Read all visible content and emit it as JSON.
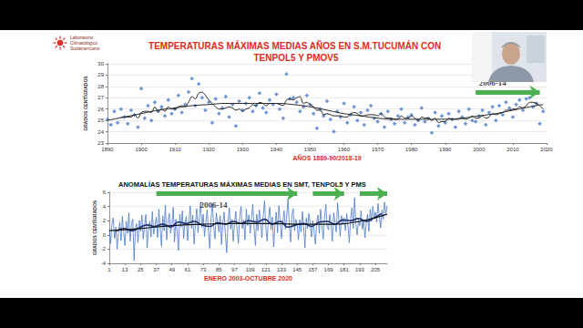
{
  "header": {
    "logo_text": "Laboratorio Climatológico Sudamericano"
  },
  "chart_data": [
    {
      "type": "scatter",
      "title": "TEMPERATURAS MÁXIMAS MEDIAS AÑOS EN S.M.TUCUMÁN CON TENPOL5 Y PMOV5",
      "x_label": "AÑOS 1889-90/2018-19",
      "y_label": "GRADOS CENTÍGRADOS",
      "x": [
        1890,
        1891,
        1892,
        1893,
        1894,
        1895,
        1896,
        1897,
        1898,
        1899,
        1900,
        1901,
        1902,
        1903,
        1904,
        1905,
        1906,
        1907,
        1908,
        1909,
        1910,
        1911,
        1912,
        1913,
        1914,
        1915,
        1916,
        1917,
        1918,
        1919,
        1920,
        1921,
        1922,
        1923,
        1924,
        1925,
        1926,
        1927,
        1928,
        1929,
        1930,
        1931,
        1932,
        1933,
        1934,
        1935,
        1936,
        1937,
        1938,
        1939,
        1940,
        1941,
        1942,
        1943,
        1944,
        1945,
        1946,
        1947,
        1948,
        1949,
        1950,
        1951,
        1952,
        1953,
        1954,
        1955,
        1956,
        1957,
        1958,
        1959,
        1960,
        1961,
        1962,
        1963,
        1964,
        1965,
        1966,
        1967,
        1968,
        1969,
        1970,
        1971,
        1972,
        1973,
        1974,
        1975,
        1976,
        1977,
        1978,
        1979,
        1980,
        1981,
        1982,
        1983,
        1984,
        1985,
        1986,
        1987,
        1988,
        1989,
        1990,
        1991,
        1992,
        1993,
        1994,
        1995,
        1996,
        1997,
        1998,
        1999,
        2000,
        2001,
        2002,
        2003,
        2004,
        2005,
        2006,
        2007,
        2008,
        2009,
        2010,
        2011,
        2012,
        2013,
        2014,
        2015,
        2016,
        2017,
        2018,
        2019
      ],
      "series": [
        {
          "type": "scatter",
          "color": "#4a7bc8",
          "marker": "diamond",
          "values": [
            25.1,
            24.6,
            25.8,
            24.8,
            26.0,
            25.3,
            24.7,
            25.9,
            25.5,
            24.4,
            27.8,
            25.2,
            26.3,
            25.0,
            26.6,
            25.8,
            26.2,
            25.4,
            26.8,
            25.6,
            26.0,
            27.2,
            25.7,
            26.4,
            27.5,
            28.7,
            26.3,
            28.2,
            27.0,
            25.9,
            26.6,
            24.8,
            26.9,
            25.6,
            26.1,
            27.1,
            25.3,
            26.4,
            24.5,
            26.7,
            25.9,
            26.5,
            27.0,
            25.8,
            26.3,
            27.4,
            26.1,
            25.7,
            26.8,
            26.4,
            27.3,
            26.0,
            25.2,
            29.1,
            26.9,
            27.0,
            26.6,
            25.8,
            26.2,
            27.2,
            26.4,
            25.6,
            24.3,
            26.0,
            25.4,
            26.7,
            25.1,
            24.0,
            25.8,
            25.3,
            26.5,
            24.8,
            25.5,
            26.2,
            25.0,
            25.7,
            24.6,
            25.9,
            26.3,
            25.2,
            24.9,
            25.6,
            24.4,
            25.8,
            25.1,
            24.7,
            25.4,
            26.0,
            24.8,
            25.3,
            25.5,
            24.6,
            25.0,
            26.1,
            24.9,
            25.2,
            23.9,
            25.7,
            24.5,
            25.4,
            24.8,
            25.6,
            25.1,
            24.4,
            25.8,
            25.3,
            24.7,
            26.0,
            25.0,
            24.9,
            25.4,
            25.9,
            24.6,
            25.7,
            26.2,
            25.0,
            26.3,
            25.5,
            26.6,
            26.1,
            25.3,
            26.4,
            26.8,
            25.9,
            26.9,
            27.0,
            26.2,
            26.5,
            24.7,
            25.8
          ]
        },
        {
          "type": "line",
          "color": "#222222",
          "line_style": "solid",
          "x": [
            1890,
            1895,
            1900,
            1905,
            1910,
            1915,
            1920,
            1925,
            1930,
            1935,
            1940,
            1945,
            1950,
            1955,
            1960,
            1965,
            1970,
            1975,
            1980,
            1985,
            1990,
            1995,
            2000,
            2005,
            2010,
            2015,
            2019
          ],
          "values": [
            25.0,
            25.3,
            25.6,
            25.9,
            26.1,
            26.3,
            26.4,
            26.5,
            26.5,
            26.5,
            26.5,
            26.4,
            26.2,
            25.9,
            25.6,
            25.4,
            25.2,
            25.1,
            25.1,
            25.1,
            25.1,
            25.2,
            25.4,
            25.6,
            25.9,
            26.2,
            26.4
          ]
        },
        {
          "type": "line",
          "color": "#222222",
          "line_style": "solid",
          "values": [
            null,
            null,
            null,
            null,
            25.3,
            25.3,
            25.3,
            25.3,
            25.5,
            25.2,
            25.7,
            25.8,
            25.8,
            25.7,
            26.2,
            25.8,
            26.0,
            25.8,
            26.2,
            26.0,
            26.0,
            26.2,
            26.3,
            26.2,
            26.6,
            27.1,
            26.9,
            27.4,
            27.5,
            27.2,
            26.8,
            26.5,
            26.2,
            26.0,
            26.0,
            26.1,
            26.2,
            26.1,
            25.9,
            26.0,
            25.8,
            26.0,
            26.1,
            26.4,
            26.3,
            26.6,
            26.5,
            26.3,
            26.5,
            26.5,
            26.5,
            26.4,
            26.3,
            26.8,
            26.9,
            26.8,
            27.0,
            27.1,
            26.5,
            26.6,
            26.4,
            26.2,
            25.9,
            25.9,
            25.5,
            25.6,
            25.5,
            25.4,
            25.4,
            25.4,
            25.3,
            25.3,
            25.6,
            25.7,
            25.6,
            25.4,
            25.4,
            25.5,
            25.5,
            25.5,
            25.4,
            25.6,
            25.3,
            25.2,
            25.2,
            25.1,
            25.1,
            25.4,
            25.2,
            25.2,
            25.4,
            25.2,
            25.0,
            25.3,
            25.2,
            25.2,
            25.0,
            25.2,
            24.8,
            24.9,
            24.9,
            25.2,
            25.1,
            25.1,
            25.1,
            25.2,
            25.1,
            25.2,
            25.4,
            25.2,
            25.2,
            25.4,
            25.2,
            25.3,
            25.6,
            25.5,
            25.6,
            25.7,
            25.9,
            25.9,
            26.0,
            26.0,
            26.2,
            26.1,
            26.3,
            26.6,
            26.6,
            26.5,
            26.3,
            26.0
          ]
        }
      ],
      "xlim": [
        1890,
        2020
      ],
      "xticks": [
        1890,
        1900,
        1910,
        1920,
        1930,
        1940,
        1950,
        1960,
        1970,
        1980,
        1990,
        2000,
        2010,
        2020
      ],
      "ylim": [
        23,
        30
      ],
      "yticks": [
        23,
        24,
        25,
        26,
        27,
        28,
        29,
        30
      ],
      "grid": true,
      "annotations": [
        {
          "text": "2006-14",
          "x": 2004,
          "y": 28.3
        }
      ],
      "arrows": [
        {
          "x_start": 1999,
          "x_end": 2018,
          "y": 27.5,
          "color": "#4caf50"
        }
      ]
    },
    {
      "type": "line",
      "title": "ANOMALÍAS TEMPERATURAS MÁXIMAS MEDIAS EN SMT, TENPOL5 Y PMS",
      "x_label": "ENERO 2003-OCTUBRE 2020",
      "y_label": "GRADOS CENTÍGRADOS",
      "x": [
        1,
        2,
        3,
        4,
        5,
        6,
        7,
        8,
        9,
        10,
        11,
        12,
        13,
        14,
        15,
        16,
        17,
        18,
        19,
        20,
        21,
        22,
        23,
        24,
        25,
        26,
        27,
        28,
        29,
        30,
        31,
        32,
        33,
        34,
        35,
        36,
        37,
        38,
        39,
        40,
        41,
        42,
        43,
        44,
        45,
        46,
        47,
        48,
        49,
        50,
        51,
        52,
        53,
        54,
        55,
        56,
        57,
        58,
        59,
        60,
        61,
        62,
        63,
        64,
        65,
        66,
        67,
        68,
        69,
        70,
        71,
        72,
        73,
        74,
        75,
        76,
        77,
        78,
        79,
        80,
        81,
        82,
        83,
        84,
        85,
        86,
        87,
        88,
        89,
        90,
        91,
        92,
        93,
        94,
        95,
        96,
        97,
        98,
        99,
        100,
        101,
        102,
        103,
        104,
        105,
        106,
        107,
        108,
        109,
        110,
        111,
        112,
        113,
        114,
        115,
        116,
        117,
        118,
        119,
        120,
        121,
        122,
        123,
        124,
        125,
        126,
        127,
        128,
        129,
        130,
        131,
        132,
        133,
        134,
        135,
        136,
        137,
        138,
        139,
        140,
        141,
        142,
        143,
        144,
        145,
        146,
        147,
        148,
        149,
        150,
        151,
        152,
        153,
        154,
        155,
        156,
        157,
        158,
        159,
        160,
        161,
        162,
        163,
        164,
        165,
        166,
        167,
        168,
        169,
        170,
        171,
        172,
        173,
        174,
        175,
        176,
        177,
        178,
        179,
        180,
        181,
        182,
        183,
        184,
        185,
        186,
        187,
        188,
        189,
        190,
        191,
        192,
        193,
        194,
        195,
        196,
        197,
        198,
        199,
        200,
        201,
        202,
        203,
        204,
        205,
        206,
        207,
        208,
        209,
        210,
        211,
        212,
        213,
        214
      ],
      "series": [
        {
          "type": "line",
          "color": "#4a78c6",
          "line_style": "solid",
          "values": [
            0.8,
            -1.2,
            1.5,
            2.4,
            -0.5,
            1.1,
            -2.0,
            0.3,
            1.8,
            -0.8,
            2.6,
            0.4,
            -1.5,
            1.9,
            0.2,
            3.1,
            -0.9,
            1.4,
            2.2,
            -3.6,
            0.9,
            1.6,
            -1.1,
            2.0,
            0.5,
            2.8,
            -0.6,
            1.3,
            2.9,
            -1.8,
            0.7,
            1.9,
            -0.3,
            3.3,
            0.1,
            1.2,
            2.5,
            -0.4,
            3.6,
            1.0,
            -1.6,
            2.7,
            0.6,
            4.2,
            -0.7,
            1.8,
            3.0,
            0.2,
            1.4,
            3.9,
            -1.0,
            2.2,
            0.5,
            -2.2,
            2.9,
            1.1,
            3.4,
            -0.5,
            1.7,
            2.6,
            -0.8,
            2.0,
            4.1,
            0.9,
            2.8,
            -1.3,
            1.5,
            3.7,
            0.3,
            2.4,
            4.6,
            1.0,
            2.9,
            -0.2,
            1.8,
            3.5,
            0.6,
            -1.9,
            2.3,
            4.4,
            1.2,
            -0.6,
            3.1,
            1.9,
            0.4,
            2.7,
            -1.4,
            1.6,
            3.2,
            0.1,
            -2.5,
            1.9,
            3.8,
            0.8,
            2.2,
            -0.9,
            1.7,
            3.3,
            0.5,
            -1.2,
            2.6,
            4.0,
            0.9,
            2.1,
            -0.7,
            3.6,
            1.3,
            2.8,
            0.2,
            2.4,
            4.3,
            1.1,
            -1.5,
            2.9,
            0.6,
            3.5,
            1.8,
            -0.4,
            2.7,
            4.8,
            1.0,
            -0.9,
            2.3,
            3.9,
            0.7,
            2.5,
            -1.7,
            1.4,
            3.2,
            0.3,
            4.1,
            2.0,
            -0.5,
            1.8,
            3.4,
            0.8,
            2.6,
            5.0,
            1.2,
            -1.0,
            2.9,
            3.7,
            0.6,
            2.2,
            1.5,
            -0.7,
            2.1,
            0.4,
            3.3,
            1.0,
            -1.8,
            2.4,
            0.9,
            3.0,
            1.6,
            -0.3,
            2.0,
            0.5,
            -1.3,
            1.7,
            2.8,
            0.2,
            3.6,
            1.3,
            -0.6,
            2.5,
            4.3,
            1.1,
            0.7,
            2.9,
            1.4,
            -0.9,
            3.1,
            1.8,
            0.4,
            4.5,
            2.2,
            -0.2,
            2.7,
            1.5,
            2.4,
            0.6,
            3.0,
            1.2,
            -1.1,
            2.3,
            3.8,
            0.9,
            5.2,
            1.6,
            0.0,
            2.1,
            1.3,
            3.4,
            0.8,
            2.0,
            -0.4,
            1.7,
            2.9,
            0.5,
            3.6,
            1.9,
            4.0,
            2.5,
            3.2,
            1.8,
            4.4,
            2.6,
            1.0,
            3.5,
            2.2,
            4.6,
            3.0,
            4.1
          ]
        },
        {
          "type": "line",
          "color": "#1b2f6b",
          "line_style": "solid",
          "x": [
            6,
            12,
            18,
            24,
            30,
            36,
            42,
            48,
            54,
            60,
            66,
            72,
            78,
            84,
            90,
            96,
            102,
            108,
            114,
            120,
            126,
            132,
            138,
            144,
            150,
            156,
            162,
            168,
            174,
            180,
            186,
            192,
            198,
            204,
            210
          ],
          "values": [
            0.5,
            0.9,
            0.6,
            1.0,
            1.4,
            1.2,
            1.5,
            1.1,
            1.8,
            1.6,
            1.9,
            1.4,
            1.2,
            1.7,
            1.5,
            1.9,
            1.6,
            2.0,
            1.8,
            2.2,
            1.5,
            1.9,
            1.1,
            1.4,
            1.6,
            1.2,
            1.8,
            1.9,
            1.5,
            2.1,
            2.0,
            2.3,
            1.9,
            2.4,
            3.0
          ]
        },
        {
          "type": "line",
          "color": "#111111",
          "line_style": "solid",
          "x": [
            1,
            25,
            49,
            73,
            97,
            121,
            145,
            169,
            193,
            214
          ],
          "values": [
            0.6,
            0.9,
            1.3,
            1.5,
            1.6,
            1.6,
            1.5,
            1.5,
            1.9,
            2.9
          ]
        }
      ],
      "xlim": [
        1,
        214
      ],
      "xticks": [
        1,
        13,
        25,
        37,
        49,
        61,
        73,
        85,
        97,
        109,
        121,
        133,
        145,
        157,
        169,
        181,
        193,
        205
      ],
      "ylim": [
        -4,
        6
      ],
      "yticks": [
        -4,
        -2,
        0,
        2,
        4,
        6
      ],
      "grid": true,
      "annotations": [
        {
          "text": "2006-14",
          "x": 81,
          "y": 4.2
        }
      ],
      "arrows": [
        {
          "x_start": 37,
          "x_end": 145,
          "y": 5.8,
          "color": "#4caf50"
        },
        {
          "x_start": 157,
          "x_end": 181,
          "y": 5.8,
          "color": "#4caf50"
        },
        {
          "x_start": 193,
          "x_end": 214,
          "y": 5.8,
          "color": "#4caf50"
        }
      ]
    }
  ]
}
